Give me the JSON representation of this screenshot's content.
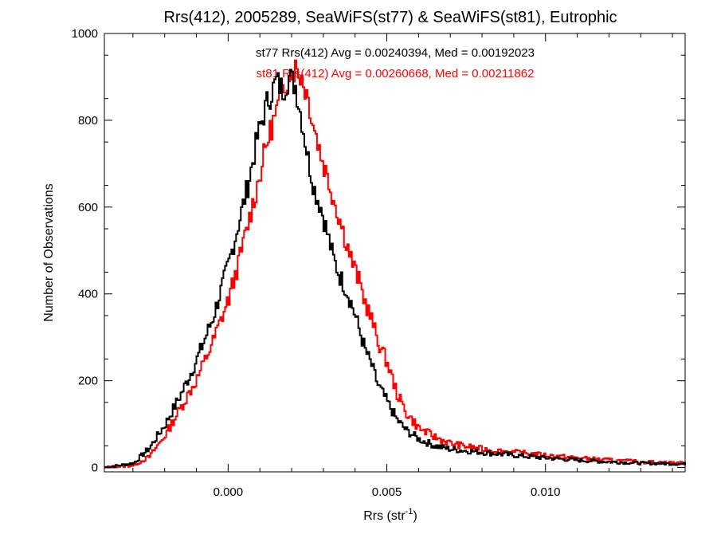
{
  "chart_data": {
    "type": "line",
    "title": "Rrs(412), 2005289, SeaWiFS(st77) & SeaWiFS(st81), Eutrophic",
    "xlabel": "Rrs (str",
    "xlabel_sup": "-1",
    "xlabel_close": ")",
    "ylabel": "Number of Observations",
    "xlim": [
      -0.0039,
      0.0144
    ],
    "ylim": [
      -10,
      1000
    ],
    "x_ticks": [
      {
        "value": 0.0,
        "label": "0.000"
      },
      {
        "value": 0.005,
        "label": "0.005"
      },
      {
        "value": 0.01,
        "label": "0.010"
      }
    ],
    "y_ticks": [
      {
        "value": 0,
        "label": "0"
      },
      {
        "value": 200,
        "label": "200"
      },
      {
        "value": 400,
        "label": "400"
      },
      {
        "value": 600,
        "label": "600"
      },
      {
        "value": 800,
        "label": "800"
      },
      {
        "value": 1000,
        "label": "1000"
      }
    ],
    "grid": false,
    "annotations": [
      {
        "text": "st77 Rrs(412) Avg = 0.00240394, Med = 0.00192023",
        "color": "#000000"
      },
      {
        "text": "st81 Rrs(412) Avg = 0.00260668, Med = 0.00211862",
        "color": "#ff0000"
      }
    ],
    "series": [
      {
        "color": "#000000",
        "x": [
          -0.0039,
          -0.003,
          -0.0025,
          -0.002,
          -0.0015,
          -0.001,
          -0.0005,
          0.0,
          0.0003,
          0.0006,
          0.0009,
          0.0012,
          0.0015,
          0.0017,
          0.0019,
          0.0021,
          0.0023,
          0.0025,
          0.0027,
          0.0029,
          0.0031,
          0.0033,
          0.0035,
          0.0037,
          0.0039,
          0.0041,
          0.0043,
          0.0045,
          0.0047,
          0.005,
          0.0053,
          0.0056,
          0.006,
          0.0065,
          0.007,
          0.008,
          0.009,
          0.01,
          0.011,
          0.012,
          0.013,
          0.0144
        ],
        "y": [
          0,
          10,
          45,
          100,
          170,
          250,
          345,
          470,
          560,
          650,
          760,
          840,
          890,
          870,
          900,
          880,
          800,
          710,
          640,
          600,
          540,
          480,
          440,
          410,
          370,
          320,
          270,
          235,
          190,
          150,
          110,
          85,
          65,
          50,
          42,
          35,
          28,
          22,
          17,
          13,
          10,
          8
        ]
      },
      {
        "color": "#ff0000",
        "x": [
          -0.0039,
          -0.003,
          -0.0025,
          -0.002,
          -0.0015,
          -0.001,
          -0.0005,
          0.0,
          0.0003,
          0.0006,
          0.0009,
          0.0012,
          0.0015,
          0.0017,
          0.0019,
          0.0021,
          0.0023,
          0.0025,
          0.0027,
          0.0029,
          0.0031,
          0.0033,
          0.0035,
          0.0037,
          0.0039,
          0.0041,
          0.0043,
          0.0045,
          0.0047,
          0.005,
          0.0053,
          0.0056,
          0.006,
          0.0065,
          0.007,
          0.008,
          0.009,
          0.01,
          0.011,
          0.012,
          0.013,
          0.0144
        ],
        "y": [
          0,
          5,
          25,
          75,
          140,
          205,
          290,
          390,
          470,
          560,
          650,
          750,
          820,
          870,
          910,
          920,
          900,
          850,
          780,
          720,
          670,
          620,
          570,
          520,
          470,
          430,
          380,
          340,
          290,
          240,
          170,
          125,
          90,
          70,
          55,
          42,
          35,
          28,
          22,
          17,
          13,
          10
        ]
      }
    ]
  }
}
